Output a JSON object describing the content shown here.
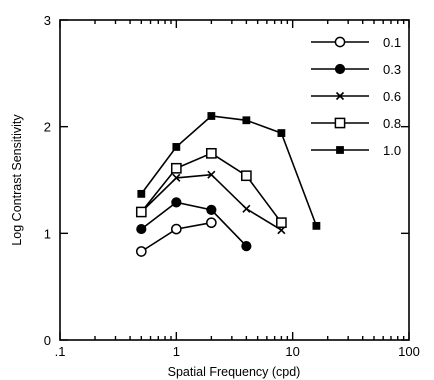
{
  "chart_data": {
    "type": "line",
    "xlabel": "Spatial Frequency  (cpd)",
    "ylabel": "Log Contrast Sensitivity",
    "x_scale": "log",
    "xlim": [
      0.1,
      100
    ],
    "ylim": [
      0,
      3
    ],
    "x_ticks": [
      ".1",
      "1",
      "10",
      "100"
    ],
    "y_ticks": [
      "0",
      "1",
      "2",
      "3"
    ],
    "grid": false,
    "legend_position": "top-right",
    "series": [
      {
        "name": "0.1",
        "marker": "open-circle",
        "x": [
          0.5,
          1,
          2
        ],
        "y": [
          0.83,
          1.04,
          1.1
        ]
      },
      {
        "name": "0.3",
        "marker": "filled-circle",
        "x": [
          0.5,
          1,
          2,
          4
        ],
        "y": [
          1.04,
          1.29,
          1.22,
          0.88
        ]
      },
      {
        "name": "0.6",
        "marker": "cross",
        "x": [
          0.5,
          1,
          2,
          4,
          8
        ],
        "y": [
          1.2,
          1.52,
          1.55,
          1.23,
          1.03
        ]
      },
      {
        "name": "0.8",
        "marker": "open-square",
        "x": [
          0.5,
          1,
          2,
          4,
          8
        ],
        "y": [
          1.2,
          1.61,
          1.75,
          1.54,
          1.1
        ]
      },
      {
        "name": "1.0",
        "marker": "filled-square",
        "x": [
          0.5,
          1,
          2,
          4,
          8,
          16
        ],
        "y": [
          1.37,
          1.81,
          2.1,
          2.06,
          1.94,
          1.07
        ]
      }
    ]
  }
}
